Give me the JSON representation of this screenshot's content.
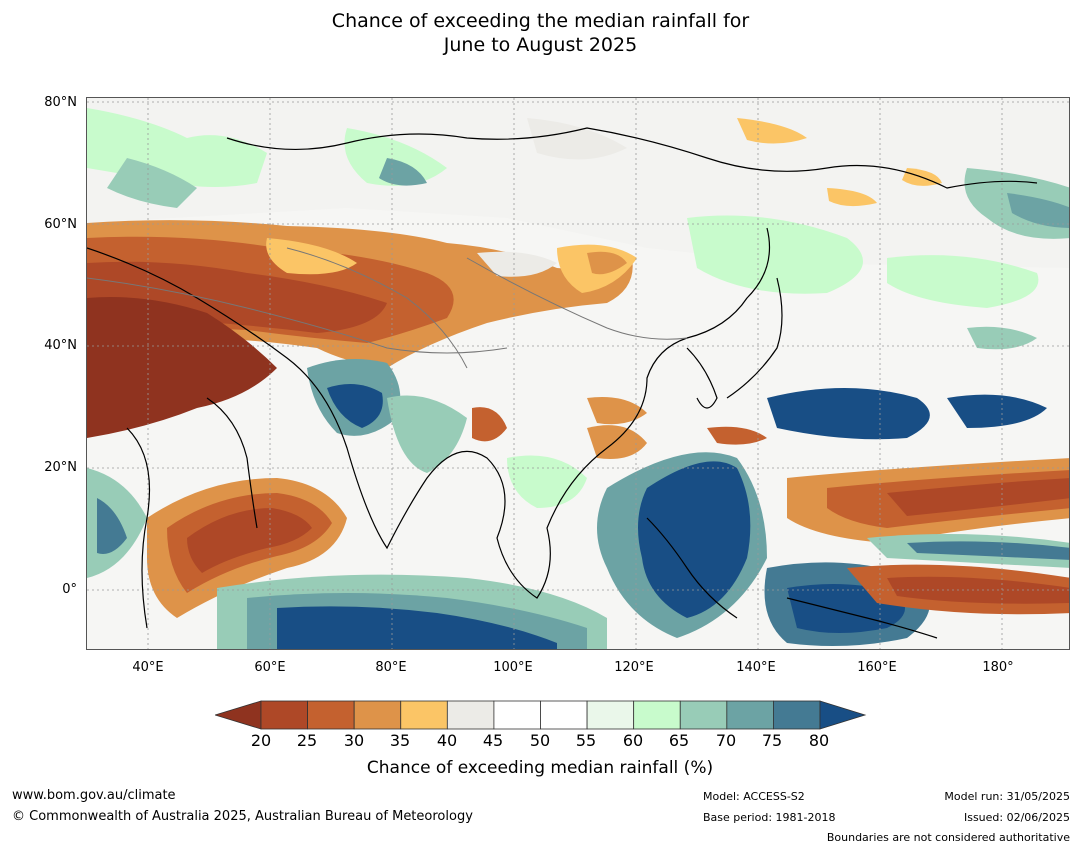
{
  "title_line1": "Chance of exceeding the median rainfall for",
  "title_line2": "June to August 2025",
  "map": {
    "lat_labels": [
      "80°N",
      "60°N",
      "40°N",
      "20°N",
      "0°"
    ],
    "lon_labels": [
      "40°E",
      "60°E",
      "80°E",
      "100°E",
      "120°E",
      "140°E",
      "160°E",
      "180°"
    ],
    "extent": {
      "lon_min": 30,
      "lon_max": 190,
      "lat_min": -10,
      "lat_max": 80
    }
  },
  "colorbar": {
    "ticks": [
      "20",
      "25",
      "30",
      "35",
      "40",
      "45",
      "50",
      "55",
      "60",
      "65",
      "70",
      "75",
      "80"
    ],
    "under_color": "#8f331f",
    "over_color": "#184e85",
    "colors": [
      "#ae4827",
      "#c4612f",
      "#de9349",
      "#fbc566",
      "#ecebe7",
      "#ffffff",
      "#ffffff",
      "#eaf7ea",
      "#c8fbcc",
      "#98ccb7",
      "#6ca3a4",
      "#447a93"
    ],
    "label": "Chance of exceeding median rainfall (%)"
  },
  "footer": {
    "url": "www.bom.gov.au/climate",
    "copyright": "© Commonwealth of Australia 2025, Australian Bureau of Meteorology",
    "model": "Model: ACCESS-S2",
    "base_period": "Base period: 1981-2018",
    "model_run": "Model run: 31/05/2025",
    "issued": "Issued: 02/06/2025",
    "disclaimer": "Boundaries are not considered authoritative"
  }
}
